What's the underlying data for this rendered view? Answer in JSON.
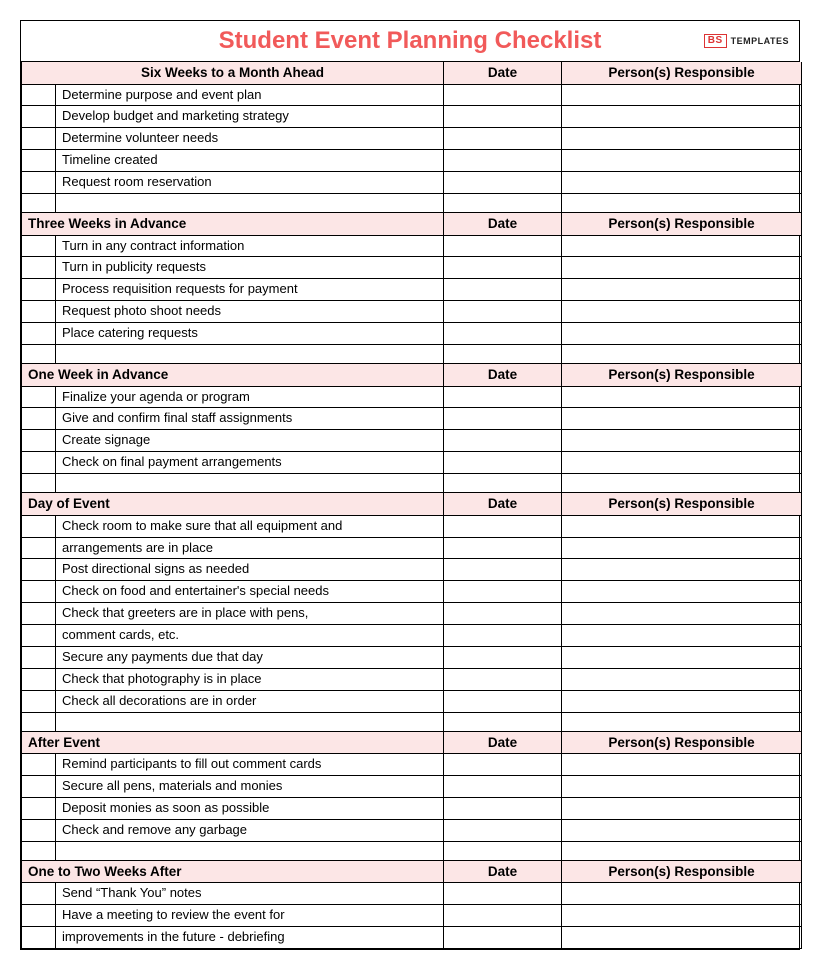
{
  "title": "Student Event Planning Checklist",
  "logo": {
    "box": "BS",
    "text": "TEMPLATES"
  },
  "columns": {
    "date": "Date",
    "responsible": "Person(s) Responsible"
  },
  "colors": {
    "title": "#f15a5a",
    "section_bg": "#fce6e6",
    "border": "#000000"
  },
  "sections": [
    {
      "heading": "Six Weeks to a Month Ahead",
      "first": true,
      "items": [
        "Determine purpose and event plan",
        "Develop budget and marketing strategy",
        "Determine volunteer needs",
        "Timeline created",
        "Request room reservation"
      ]
    },
    {
      "heading": "Three Weeks in Advance",
      "items": [
        "Turn in any contract information",
        "Turn in publicity requests",
        "Process requisition requests for payment",
        "Request photo shoot needs",
        "Place catering requests"
      ]
    },
    {
      "heading": "One Week in Advance",
      "items": [
        "Finalize your agenda or program",
        "Give and confirm final staff assignments",
        "Create signage",
        "Check on final payment arrangements"
      ]
    },
    {
      "heading": "Day of Event",
      "items": [
        "Check room to make sure that all equipment and",
        "arrangements are in place",
        "Post directional signs as needed",
        "Check on food and entertainer's special needs",
        "Check that greeters are in place with pens,",
        "comment cards, etc.",
        "Secure any payments due that day",
        "Check that photography is in place",
        "Check all decorations are in order"
      ]
    },
    {
      "heading": "After Event",
      "items": [
        "Remind participants to fill out comment cards",
        "Secure all pens, materials and monies",
        "Deposit monies as soon as possible",
        "Check and remove any garbage"
      ]
    },
    {
      "heading": "One to Two Weeks After",
      "items": [
        "Send “Thank You” notes",
        "Have a meeting to review the event for",
        "improvements in the future - debriefing"
      ],
      "no_trailing_blank": true
    }
  ]
}
